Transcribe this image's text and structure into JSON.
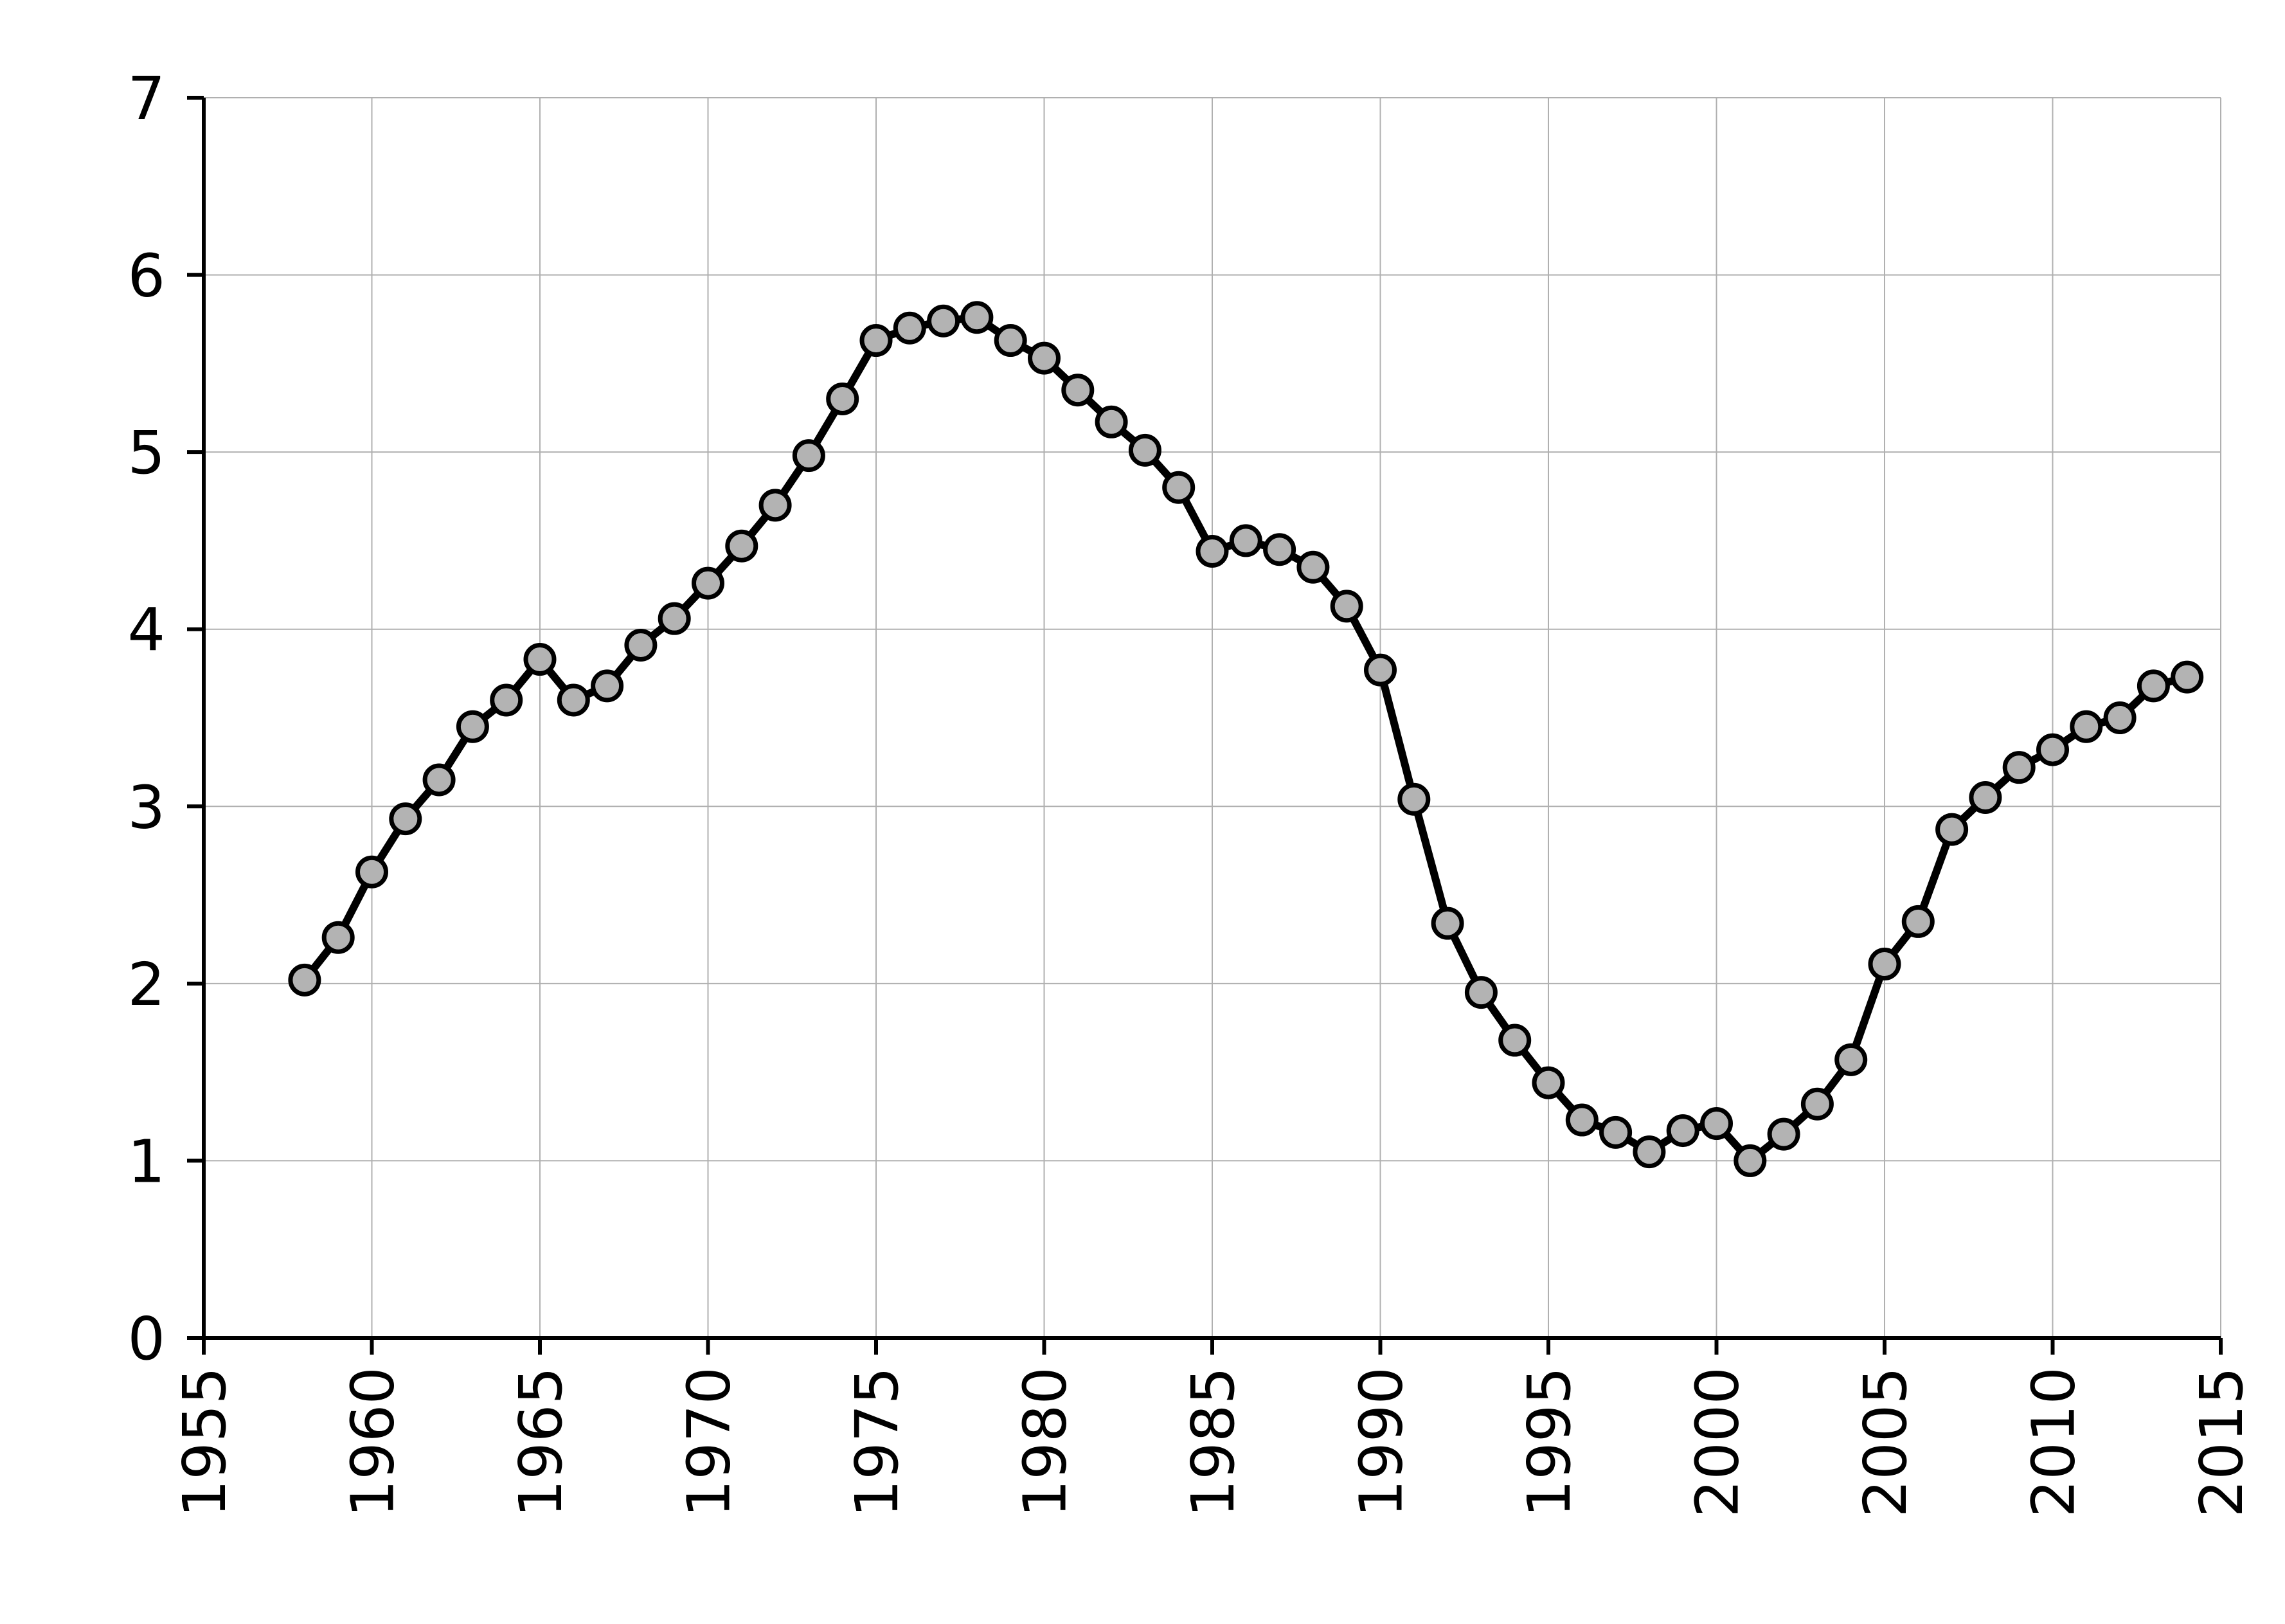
{
  "chart_data": {
    "type": "line",
    "x": [
      1958,
      1959,
      1960,
      1961,
      1962,
      1963,
      1964,
      1965,
      1966,
      1967,
      1968,
      1969,
      1970,
      1971,
      1972,
      1973,
      1974,
      1975,
      1976,
      1977,
      1978,
      1979,
      1980,
      1981,
      1982,
      1983,
      1984,
      1985,
      1986,
      1987,
      1988,
      1989,
      1990,
      1991,
      1992,
      1993,
      1994,
      1995,
      1996,
      1997,
      1998,
      1999,
      2000,
      2001,
      2002,
      2003,
      2004,
      2005,
      2006,
      2007,
      2008,
      2009,
      2010,
      2011,
      2012,
      2013,
      2014
    ],
    "values": [
      2.02,
      2.26,
      2.63,
      2.93,
      3.15,
      3.45,
      3.6,
      3.83,
      3.6,
      3.68,
      3.91,
      4.06,
      4.26,
      4.47,
      4.7,
      4.98,
      5.3,
      5.63,
      5.7,
      5.74,
      5.76,
      5.63,
      5.53,
      5.35,
      5.17,
      5.01,
      4.8,
      4.44,
      4.5,
      4.45,
      4.35,
      4.13,
      3.77,
      3.04,
      2.34,
      1.95,
      1.68,
      1.44,
      1.23,
      1.16,
      1.05,
      1.17,
      1.21,
      1.0,
      1.15,
      1.32,
      1.57,
      2.11,
      2.35,
      2.87,
      3.05,
      3.22,
      3.32,
      3.45,
      3.5,
      3.68,
      3.73
    ],
    "color": "#000000",
    "marker_color": "#b3b3b3",
    "xlim": [
      1955,
      2015
    ],
    "xticks": [
      1955,
      1960,
      1965,
      1970,
      1975,
      1980,
      1985,
      1990,
      1995,
      2000,
      2005,
      2010,
      2015
    ],
    "ylim": [
      0,
      7
    ],
    "yticks": [
      0,
      1,
      2,
      3,
      4,
      5,
      6,
      7
    ],
    "grid": true
  }
}
